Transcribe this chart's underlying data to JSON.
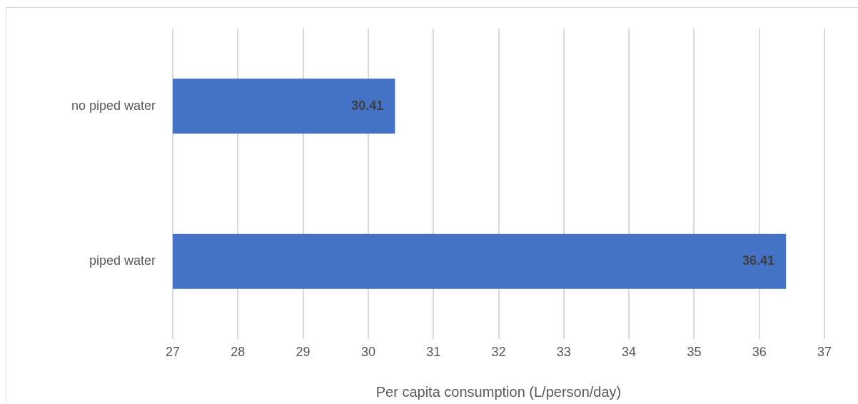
{
  "chart_data": {
    "type": "bar",
    "orientation": "horizontal",
    "categories": [
      "no piped water",
      "piped water"
    ],
    "values": [
      30.41,
      36.41
    ],
    "color": "#4472c4",
    "xlabel": "Per capita consumption (L/person/day)",
    "xlim": [
      27,
      37
    ],
    "xticks": [
      27,
      28,
      29,
      30,
      31,
      32,
      33,
      34,
      35,
      36,
      37
    ],
    "grid": "x",
    "data_labels": true,
    "legend": false
  }
}
